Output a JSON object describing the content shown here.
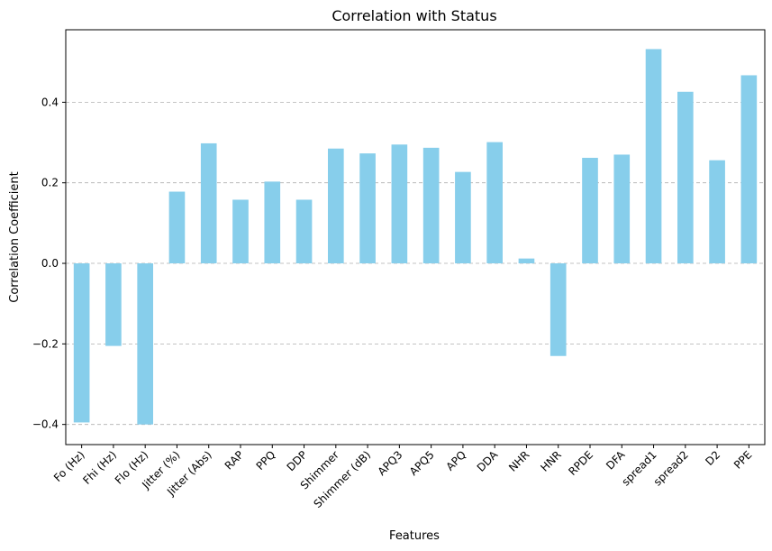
{
  "chart_data": {
    "type": "bar",
    "title": "Correlation with Status",
    "xlabel": "Features",
    "ylabel": "Correlation Coefficient",
    "ylim": [
      -0.45,
      0.58
    ],
    "yticks": [
      -0.4,
      -0.2,
      0.0,
      0.2,
      0.4
    ],
    "ytick_labels": [
      "−0.4",
      "−0.2",
      "0.0",
      "0.2",
      "0.4"
    ],
    "grid": "y-dashed",
    "bar_color": "#87CEEB",
    "categories": [
      "Fo (Hz)",
      "Fhi (Hz)",
      "Flo (Hz)",
      "Jitter (%)",
      "Jitter (Abs)",
      "RAP",
      "PPQ",
      "DDP",
      "Shimmer",
      "Shimmer (dB)",
      "APQ3",
      "APQ5",
      "APQ",
      "DDA",
      "NHR",
      "HNR",
      "RPDE",
      "DFA",
      "spread1",
      "spread2",
      "D2",
      "PPE"
    ],
    "values": [
      -0.395,
      -0.205,
      -0.4,
      0.178,
      0.298,
      0.158,
      0.203,
      0.158,
      0.285,
      0.273,
      0.295,
      0.287,
      0.227,
      0.301,
      0.012,
      -0.23,
      0.262,
      0.27,
      0.532,
      0.426,
      0.256,
      0.467
    ]
  }
}
